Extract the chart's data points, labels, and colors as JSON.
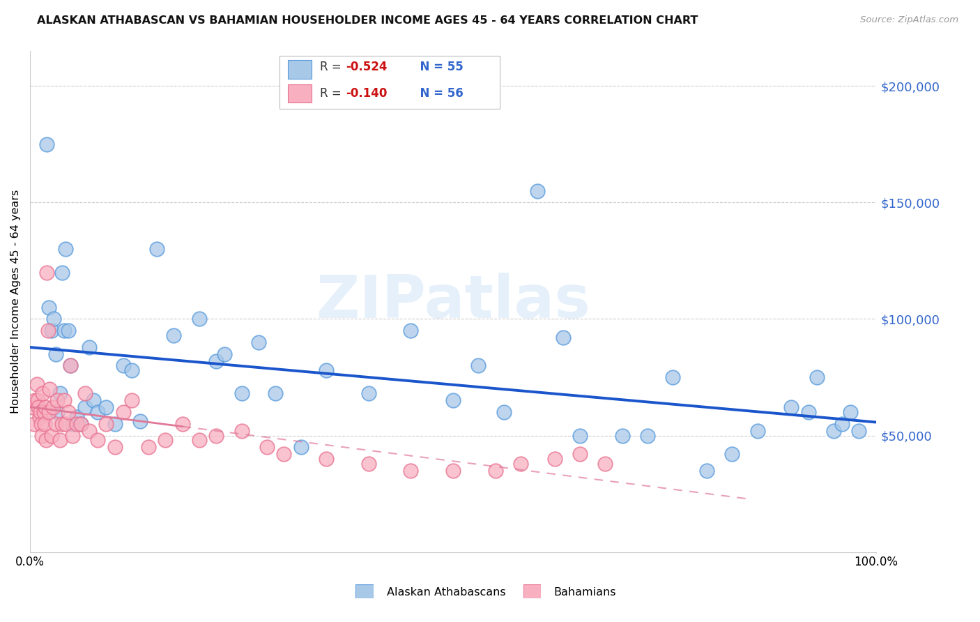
{
  "title": "ALASKAN ATHABASCAN VS BAHAMIAN HOUSEHOLDER INCOME AGES 45 - 64 YEARS CORRELATION CHART",
  "source": "Source: ZipAtlas.com",
  "ylabel": "Householder Income Ages 45 - 64 years",
  "legend_labels": [
    "Alaskan Athabascans",
    "Bahamians"
  ],
  "legend_row1": "R = -0.524   N = 55",
  "legend_row2": "R = -0.140   N = 56",
  "legend_r1": "-0.524",
  "legend_r2": "-0.140",
  "legend_n1": "55",
  "legend_n2": "56",
  "color_blue": "#a8c8e8",
  "color_pink": "#f8b0c0",
  "edge_blue": "#5599dd",
  "edge_pink": "#e87090",
  "line_blue": "#1a55cc",
  "line_pink": "#e07898",
  "text_blue": "#3366cc",
  "watermark": "ZIPatlas",
  "ytick_labels": [
    "$50,000",
    "$100,000",
    "$150,000",
    "$200,000"
  ],
  "ytick_values": [
    50000,
    100000,
    150000,
    200000
  ],
  "ymin": 0,
  "ymax": 215000,
  "xmin": 0.0,
  "xmax": 1.0,
  "xtick_labels": [
    "0.0%",
    "100.0%"
  ],
  "blue_x": [
    0.02,
    0.022,
    0.025,
    0.028,
    0.03,
    0.032,
    0.035,
    0.038,
    0.04,
    0.042,
    0.045,
    0.048,
    0.05,
    0.055,
    0.06,
    0.065,
    0.07,
    0.075,
    0.08,
    0.09,
    0.1,
    0.11,
    0.12,
    0.13,
    0.15,
    0.17,
    0.2,
    0.22,
    0.23,
    0.25,
    0.27,
    0.29,
    0.32,
    0.35,
    0.4,
    0.45,
    0.5,
    0.53,
    0.56,
    0.6,
    0.63,
    0.65,
    0.7,
    0.73,
    0.76,
    0.8,
    0.83,
    0.86,
    0.9,
    0.92,
    0.93,
    0.95,
    0.96,
    0.97,
    0.98
  ],
  "blue_y": [
    175000,
    105000,
    95000,
    100000,
    85000,
    60000,
    68000,
    120000,
    95000,
    130000,
    95000,
    80000,
    55000,
    58000,
    55000,
    62000,
    88000,
    65000,
    60000,
    62000,
    55000,
    80000,
    78000,
    56000,
    130000,
    93000,
    100000,
    82000,
    85000,
    68000,
    90000,
    68000,
    45000,
    78000,
    68000,
    95000,
    65000,
    80000,
    60000,
    155000,
    92000,
    50000,
    50000,
    50000,
    75000,
    35000,
    42000,
    52000,
    62000,
    60000,
    75000,
    52000,
    55000,
    60000,
    52000
  ],
  "pink_x": [
    0.003,
    0.005,
    0.006,
    0.008,
    0.009,
    0.01,
    0.011,
    0.012,
    0.013,
    0.014,
    0.015,
    0.016,
    0.017,
    0.018,
    0.019,
    0.02,
    0.021,
    0.022,
    0.023,
    0.025,
    0.027,
    0.03,
    0.032,
    0.035,
    0.038,
    0.04,
    0.042,
    0.045,
    0.048,
    0.05,
    0.055,
    0.06,
    0.065,
    0.07,
    0.08,
    0.09,
    0.1,
    0.11,
    0.12,
    0.14,
    0.16,
    0.18,
    0.2,
    0.22,
    0.25,
    0.28,
    0.3,
    0.35,
    0.4,
    0.45,
    0.5,
    0.55,
    0.58,
    0.62,
    0.65,
    0.68
  ],
  "pink_y": [
    62000,
    55000,
    65000,
    72000,
    65000,
    62000,
    58000,
    60000,
    55000,
    50000,
    68000,
    60000,
    55000,
    62000,
    48000,
    120000,
    95000,
    60000,
    70000,
    50000,
    62000,
    55000,
    65000,
    48000,
    55000,
    65000,
    55000,
    60000,
    80000,
    50000,
    55000,
    55000,
    68000,
    52000,
    48000,
    55000,
    45000,
    60000,
    65000,
    45000,
    48000,
    55000,
    48000,
    50000,
    52000,
    45000,
    42000,
    40000,
    38000,
    35000,
    35000,
    35000,
    38000,
    40000,
    42000,
    38000
  ]
}
